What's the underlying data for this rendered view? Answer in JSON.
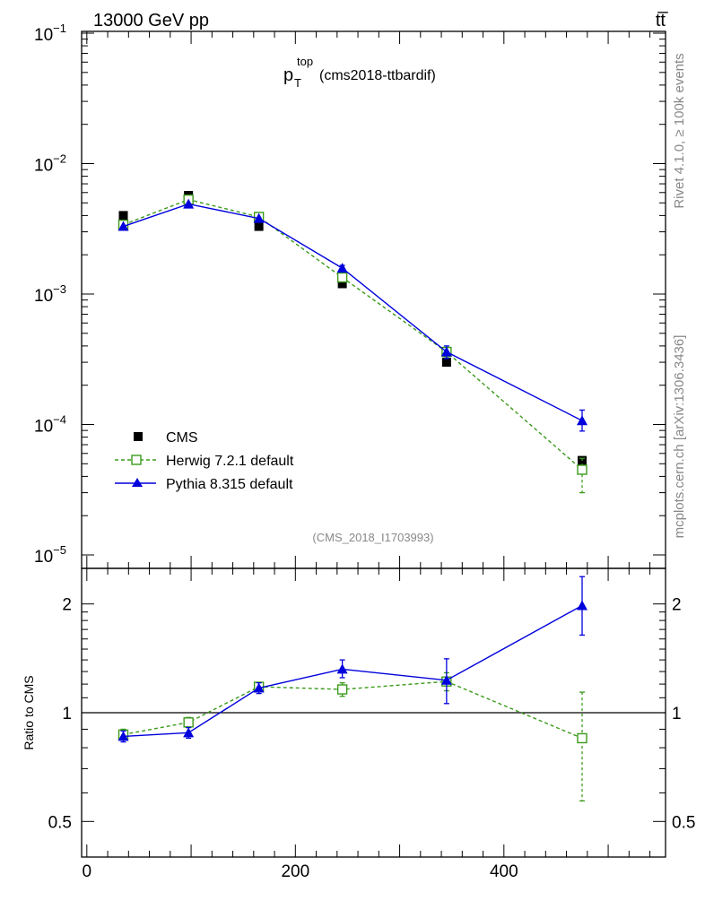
{
  "header": {
    "energy_label": "13000 GeV pp",
    "process_label": "tt̅"
  },
  "side_labels": {
    "rivet": "Rivet 4.1.0, ≥ 100k events",
    "mcplots": "mcplots.cern.ch [arXiv:1306.3436]"
  },
  "chart_data": [
    {
      "type": "scatter",
      "panel": "main",
      "title": {
        "base": "p",
        "sub": "T",
        "sup": "top",
        "rest": " (cms2018-ttbardif)"
      },
      "analysis_label": "(CMS_2018_I1703993)",
      "yscale": "log",
      "ylim": [
        1e-05,
        0.1
      ],
      "xlim": [
        -5,
        555
      ],
      "y_ticks": [
        {
          "value": 0.1,
          "mant": "10",
          "exp": "−1"
        },
        {
          "value": 0.01,
          "mant": "10",
          "exp": "−2"
        },
        {
          "value": 0.001,
          "mant": "10",
          "exp": "−3"
        },
        {
          "value": 0.0001,
          "mant": "10",
          "exp": "−4"
        },
        {
          "value": 1e-05,
          "mant": "10",
          "exp": "−5"
        }
      ],
      "legend_position": "lower-left",
      "series": [
        {
          "name": "CMS",
          "style": "data",
          "color": "#000000",
          "x": [
            35,
            97.5,
            165,
            245,
            345,
            475
          ],
          "y": [
            0.004,
            0.0057,
            0.0033,
            0.0012,
            0.0003,
            5.3e-05
          ],
          "err_low": [
            0,
            0,
            0,
            0,
            0,
            0
          ],
          "err_high": [
            0,
            0,
            0,
            0,
            0,
            0
          ]
        },
        {
          "name": "Herwig 7.2.1 default",
          "style": "herwig",
          "color": "#3a9a1a",
          "x": [
            35,
            97.5,
            165,
            245,
            345,
            475
          ],
          "y": [
            0.0034,
            0.0053,
            0.0039,
            0.00134,
            0.00036,
            4.5e-05
          ],
          "err_low": [
            0,
            0,
            0,
            6e-05,
            3e-05,
            1.5e-05
          ],
          "err_high": [
            0,
            0,
            0,
            6e-05,
            3e-05,
            1e-05
          ]
        },
        {
          "name": "Pythia 8.315 default",
          "style": "pythia",
          "color": "#0000dd",
          "x": [
            35,
            97.5,
            165,
            245,
            345,
            475
          ],
          "y": [
            0.0033,
            0.0049,
            0.0038,
            0.00158,
            0.00036,
            0.000107
          ],
          "err_low": [
            0,
            0,
            0,
            8e-05,
            4e-05,
            1.8e-05
          ],
          "err_high": [
            0,
            0,
            0,
            8e-05,
            4e-05,
            2.2e-05
          ]
        }
      ]
    },
    {
      "type": "scatter",
      "panel": "ratio",
      "ylabel": "Ratio to CMS",
      "ylim": [
        0.42,
        2.35
      ],
      "xlim": [
        -5,
        555
      ],
      "x_ticks": [
        0,
        200,
        400
      ],
      "y_ticks": [
        0.5,
        1,
        2
      ],
      "reference_line": 1,
      "series": [
        {
          "name": "Herwig 7.2.1 default",
          "style": "herwig",
          "color": "#3a9a1a",
          "x": [
            35,
            97.5,
            165,
            245,
            345,
            475
          ],
          "y": [
            0.87,
            0.94,
            1.18,
            1.16,
            1.22,
            0.85
          ],
          "err_low": [
            0.03,
            0.03,
            0.03,
            0.05,
            0.07,
            0.28
          ],
          "err_high": [
            0.03,
            0.03,
            0.03,
            0.05,
            0.07,
            0.29
          ]
        },
        {
          "name": "Pythia 8.315 default",
          "style": "pythia",
          "color": "#0000dd",
          "x": [
            35,
            97.5,
            165,
            245,
            345,
            475
          ],
          "y": [
            0.86,
            0.88,
            1.17,
            1.32,
            1.23,
            1.98
          ],
          "err_low": [
            0.03,
            0.03,
            0.04,
            0.07,
            0.17,
            0.34
          ],
          "err_high": [
            0.03,
            0.03,
            0.04,
            0.08,
            0.18,
            0.4
          ]
        }
      ]
    }
  ]
}
